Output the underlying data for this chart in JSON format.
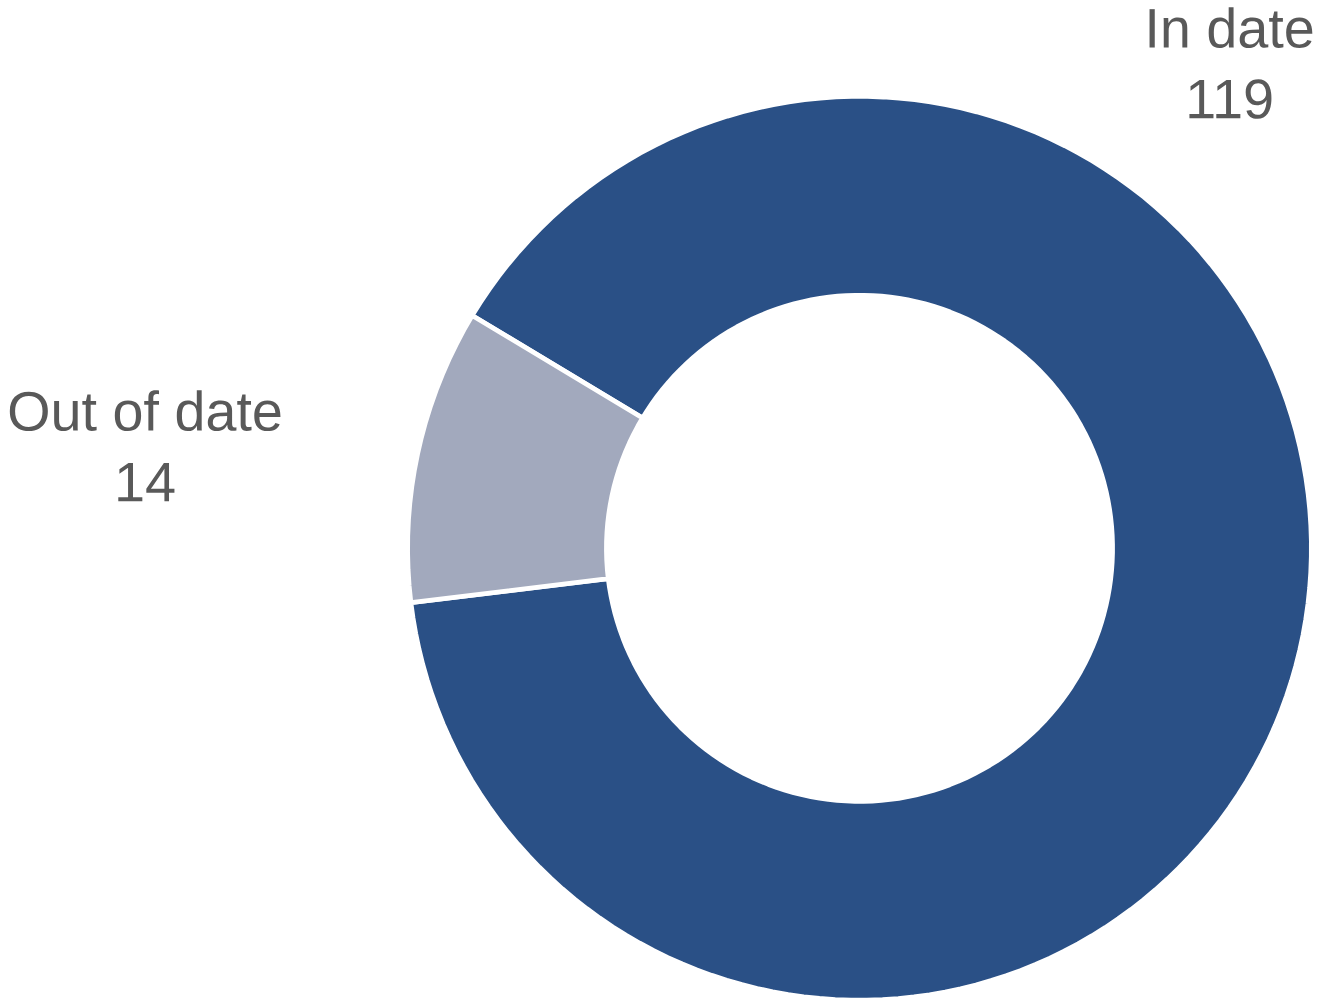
{
  "chart_data": {
    "type": "donut",
    "categories": [
      "In date",
      "Out of date"
    ],
    "values": [
      119,
      14
    ],
    "colors": [
      "#2a5086",
      "#a2a9bd"
    ],
    "data_labels": true
  }
}
